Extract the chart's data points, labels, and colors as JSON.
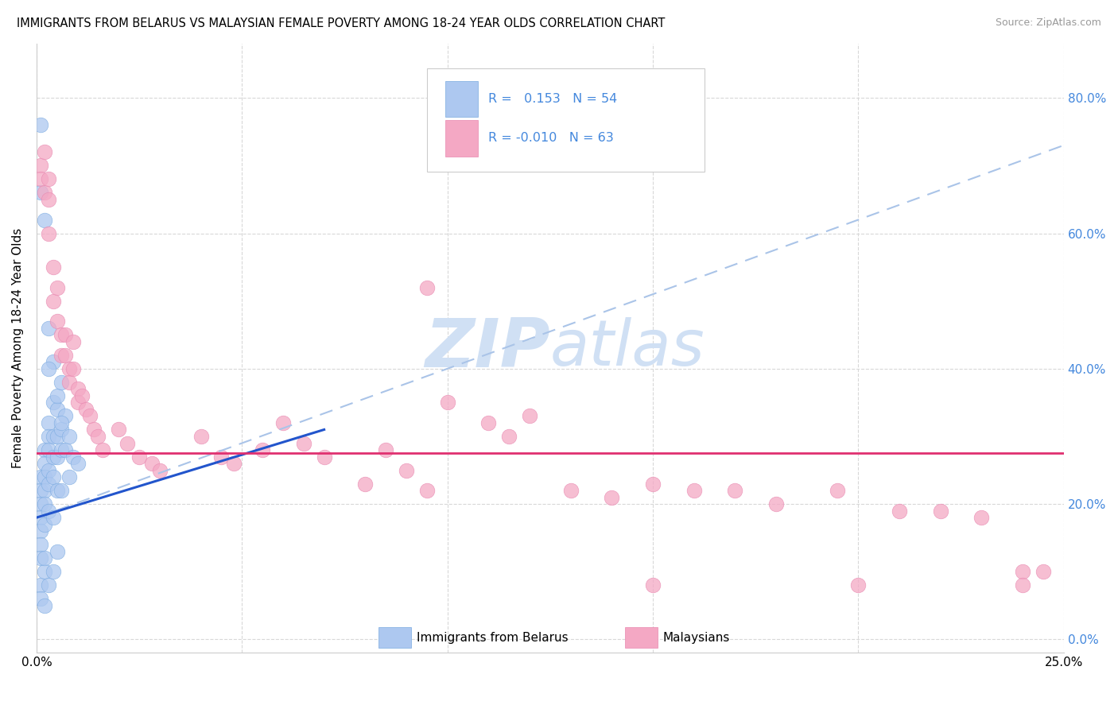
{
  "title": "IMMIGRANTS FROM BELARUS VS MALAYSIAN FEMALE POVERTY AMONG 18-24 YEAR OLDS CORRELATION CHART",
  "source": "Source: ZipAtlas.com",
  "ylabel": "Female Poverty Among 18-24 Year Olds",
  "xlim": [
    0,
    0.25
  ],
  "ylim": [
    -0.02,
    0.88
  ],
  "yticks": [
    0.0,
    0.2,
    0.4,
    0.6,
    0.8
  ],
  "xticks": [
    0.0,
    0.05,
    0.1,
    0.15,
    0.2,
    0.25
  ],
  "blue_color": "#adc8f0",
  "pink_color": "#f4a8c4",
  "blue_edge_color": "#7aaae0",
  "pink_edge_color": "#e888b0",
  "blue_line_color": "#2255cc",
  "pink_line_color": "#e03070",
  "dash_line_color": "#aac4e8",
  "right_tick_color": "#4488dd",
  "watermark_color": "#d0e0f4",
  "blue_x": [
    0.001,
    0.001,
    0.001,
    0.001,
    0.001,
    0.001,
    0.001,
    0.001,
    0.002,
    0.002,
    0.002,
    0.002,
    0.002,
    0.002,
    0.002,
    0.003,
    0.003,
    0.003,
    0.003,
    0.003,
    0.003,
    0.004,
    0.004,
    0.004,
    0.004,
    0.004,
    0.005,
    0.005,
    0.005,
    0.005,
    0.006,
    0.006,
    0.006,
    0.007,
    0.007,
    0.008,
    0.008,
    0.009,
    0.01,
    0.001,
    0.002,
    0.003,
    0.004,
    0.005,
    0.006,
    0.001,
    0.002,
    0.002,
    0.003,
    0.004,
    0.005,
    0.001,
    0.003,
    0.006
  ],
  "blue_y": [
    0.24,
    0.22,
    0.2,
    0.18,
    0.16,
    0.14,
    0.12,
    0.08,
    0.28,
    0.26,
    0.24,
    0.22,
    0.2,
    0.17,
    0.1,
    0.32,
    0.3,
    0.28,
    0.25,
    0.23,
    0.19,
    0.35,
    0.3,
    0.27,
    0.24,
    0.18,
    0.34,
    0.3,
    0.27,
    0.22,
    0.31,
    0.28,
    0.22,
    0.33,
    0.28,
    0.3,
    0.24,
    0.27,
    0.26,
    0.66,
    0.62,
    0.46,
    0.41,
    0.36,
    0.32,
    0.06,
    0.05,
    0.12,
    0.08,
    0.1,
    0.13,
    0.76,
    0.4,
    0.38
  ],
  "pink_x": [
    0.001,
    0.001,
    0.002,
    0.002,
    0.003,
    0.003,
    0.003,
    0.004,
    0.004,
    0.005,
    0.005,
    0.006,
    0.006,
    0.007,
    0.007,
    0.008,
    0.008,
    0.009,
    0.009,
    0.01,
    0.01,
    0.011,
    0.012,
    0.013,
    0.014,
    0.015,
    0.016,
    0.02,
    0.022,
    0.025,
    0.028,
    0.03,
    0.04,
    0.045,
    0.048,
    0.055,
    0.06,
    0.065,
    0.07,
    0.08,
    0.085,
    0.09,
    0.095,
    0.1,
    0.11,
    0.115,
    0.12,
    0.13,
    0.14,
    0.15,
    0.16,
    0.17,
    0.18,
    0.195,
    0.21,
    0.22,
    0.23,
    0.24,
    0.245,
    0.15,
    0.2,
    0.24,
    0.095
  ],
  "pink_y": [
    0.7,
    0.68,
    0.72,
    0.66,
    0.68,
    0.65,
    0.6,
    0.55,
    0.5,
    0.52,
    0.47,
    0.45,
    0.42,
    0.45,
    0.42,
    0.4,
    0.38,
    0.44,
    0.4,
    0.37,
    0.35,
    0.36,
    0.34,
    0.33,
    0.31,
    0.3,
    0.28,
    0.31,
    0.29,
    0.27,
    0.26,
    0.25,
    0.3,
    0.27,
    0.26,
    0.28,
    0.32,
    0.29,
    0.27,
    0.23,
    0.28,
    0.25,
    0.22,
    0.35,
    0.32,
    0.3,
    0.33,
    0.22,
    0.21,
    0.23,
    0.22,
    0.22,
    0.2,
    0.22,
    0.19,
    0.19,
    0.18,
    0.1,
    0.1,
    0.08,
    0.08,
    0.08,
    0.52
  ],
  "blue_line_x": [
    0.0,
    0.07
  ],
  "blue_line_y": [
    0.18,
    0.31
  ],
  "pink_line_x": [
    0.0,
    0.25
  ],
  "pink_line_y": [
    0.275,
    0.275
  ],
  "dash_line_x": [
    0.0,
    0.25
  ],
  "dash_line_y": [
    0.18,
    0.73
  ]
}
